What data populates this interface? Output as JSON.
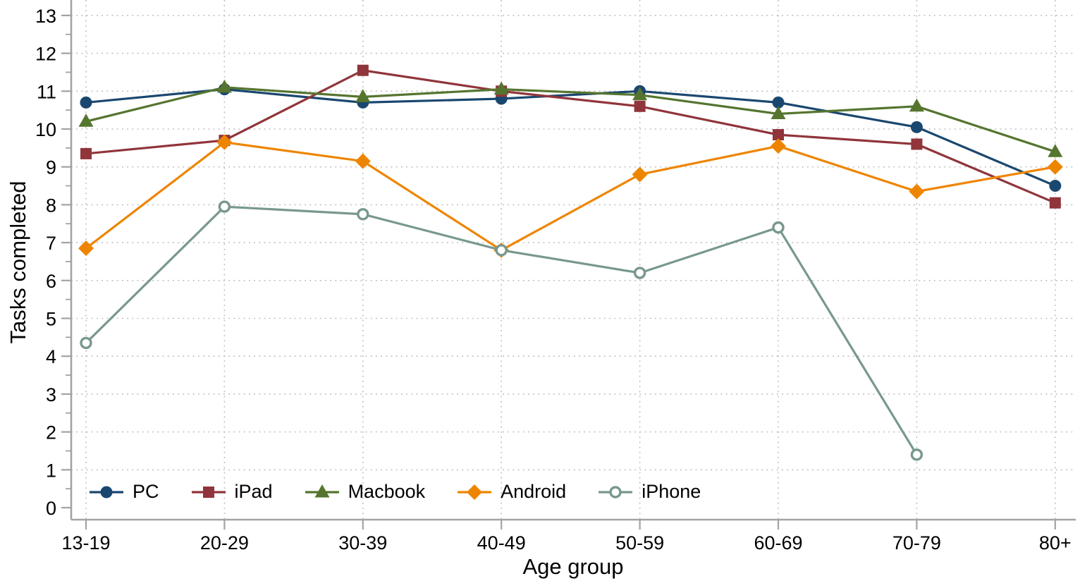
{
  "chart_data": {
    "type": "line",
    "title": "",
    "xlabel": "Age group",
    "ylabel": "Tasks completed",
    "categories": [
      "13-19",
      "20-29",
      "30-39",
      "40-49",
      "50-59",
      "60-69",
      "70-79",
      "80+"
    ],
    "y_ticks": [
      0,
      1,
      2,
      3,
      4,
      5,
      6,
      7,
      8,
      9,
      10,
      11,
      12,
      13
    ],
    "ylim": [
      0,
      13
    ],
    "grid": "dotted horizontal lines at integers 1-13, dotted vertical lines at each category",
    "legend_position": "bottom-left inside plot area",
    "series": [
      {
        "name": "PC",
        "color": "#1a476f",
        "marker": "filled-circle",
        "values": [
          10.7,
          11.05,
          10.7,
          10.8,
          11.0,
          10.7,
          10.05,
          8.5
        ]
      },
      {
        "name": "iPad",
        "color": "#90353b",
        "marker": "filled-square",
        "values": [
          9.35,
          9.7,
          11.55,
          11.0,
          10.6,
          9.85,
          9.6,
          8.05
        ]
      },
      {
        "name": "Macbook",
        "color": "#55752f",
        "marker": "filled-triangle",
        "values": [
          10.2,
          11.1,
          10.85,
          11.05,
          10.9,
          10.4,
          10.6,
          9.4
        ]
      },
      {
        "name": "Android",
        "color": "#ee8500",
        "marker": "filled-diamond",
        "values": [
          6.85,
          9.65,
          9.15,
          6.8,
          8.8,
          9.55,
          8.35,
          9.0
        ]
      },
      {
        "name": "iPhone",
        "color": "#78988e",
        "marker": "open-circle",
        "values": [
          4.35,
          7.95,
          7.75,
          6.8,
          6.2,
          7.4,
          1.4,
          null
        ]
      }
    ]
  },
  "colors": {
    "axis": "#a3a3a3",
    "grid": "#bcbcbc",
    "text": "#000000",
    "background": "#ffffff"
  }
}
